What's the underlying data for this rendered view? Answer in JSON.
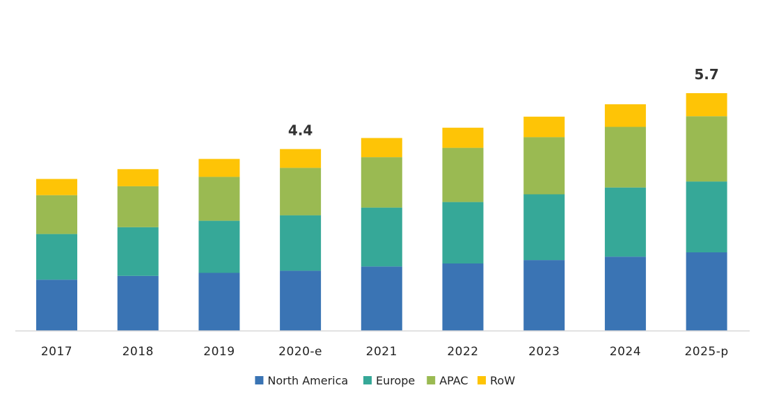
{
  "chart_data": {
    "type": "bar",
    "stacked": true,
    "title": "",
    "xlabel": "",
    "ylabel": "",
    "categories": [
      "2017",
      "2018",
      "2019",
      "2020-e",
      "2021",
      "2022",
      "2023",
      "2024",
      "2025-p"
    ],
    "ylim": [
      0,
      6.0
    ],
    "grid": false,
    "legend_position": "bottom",
    "series": [
      {
        "name": "North America",
        "color": "#3a74b4",
        "values": [
          1.2,
          1.29,
          1.36,
          1.41,
          1.51,
          1.58,
          1.66,
          1.74,
          1.84
        ]
      },
      {
        "name": "Europe",
        "color": "#36a898",
        "values": [
          1.07,
          1.14,
          1.22,
          1.3,
          1.38,
          1.44,
          1.54,
          1.62,
          1.66
        ]
      },
      {
        "name": "APAC",
        "color": "#9aba52",
        "values": [
          0.91,
          0.96,
          1.03,
          1.11,
          1.18,
          1.27,
          1.34,
          1.42,
          1.53
        ]
      },
      {
        "name": "RoW",
        "color": "#fec406",
        "values": [
          0.38,
          0.4,
          0.42,
          0.44,
          0.45,
          0.47,
          0.48,
          0.53,
          0.54
        ]
      }
    ],
    "data_labels": [
      {
        "category": "2020-e",
        "text": "4.4"
      },
      {
        "category": "2025-p",
        "text": "5.7"
      }
    ]
  }
}
